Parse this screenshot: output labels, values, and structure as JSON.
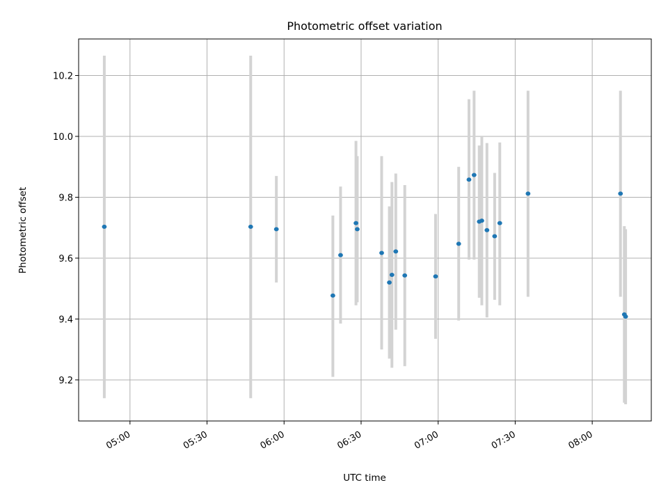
{
  "chart_data": {
    "type": "scatter",
    "title": "Photometric offset variation",
    "xlabel": "UTC time",
    "ylabel": "Photometric offset",
    "x_axis_kind": "time",
    "xlim": [
      "04:40",
      "08:23"
    ],
    "ylim": [
      9.065,
      10.32
    ],
    "grid": true,
    "marker_color": "#1f77b4",
    "errorbar_color": "#d3d3d3",
    "x_ticks": [
      "05:00",
      "05:30",
      "06:00",
      "06:30",
      "07:00",
      "07:30",
      "08:00"
    ],
    "y_ticks": [
      9.2,
      9.4,
      9.6,
      9.8,
      10.0,
      10.2
    ],
    "y_tick_labels": [
      "9.2",
      "9.4",
      "9.6",
      "9.8",
      "10.0",
      "10.2"
    ],
    "points": [
      {
        "t": "04:50",
        "y": 9.703,
        "lo": 9.14,
        "hi": 10.265
      },
      {
        "t": "05:47",
        "y": 9.703,
        "lo": 9.14,
        "hi": 10.265
      },
      {
        "t": "05:57",
        "y": 9.695,
        "lo": 9.52,
        "hi": 9.87
      },
      {
        "t": "06:19",
        "y": 9.477,
        "lo": 9.21,
        "hi": 9.74
      },
      {
        "t": "06:22",
        "y": 9.61,
        "lo": 9.385,
        "hi": 9.835
      },
      {
        "t": "06:28",
        "y": 9.715,
        "lo": 9.445,
        "hi": 9.985
      },
      {
        "t": "06:28.5",
        "y": 9.695,
        "lo": 9.455,
        "hi": 9.935
      },
      {
        "t": "06:38",
        "y": 9.617,
        "lo": 9.3,
        "hi": 9.935
      },
      {
        "t": "06:41",
        "y": 9.52,
        "lo": 9.27,
        "hi": 9.77
      },
      {
        "t": "06:42",
        "y": 9.545,
        "lo": 9.24,
        "hi": 9.85
      },
      {
        "t": "06:43.5",
        "y": 9.622,
        "lo": 9.365,
        "hi": 9.878
      },
      {
        "t": "06:47",
        "y": 9.543,
        "lo": 9.245,
        "hi": 9.84
      },
      {
        "t": "06:59",
        "y": 9.54,
        "lo": 9.335,
        "hi": 9.745
      },
      {
        "t": "07:08",
        "y": 9.647,
        "lo": 9.395,
        "hi": 9.9
      },
      {
        "t": "07:12",
        "y": 9.858,
        "lo": 9.595,
        "hi": 10.122
      },
      {
        "t": "07:14",
        "y": 9.873,
        "lo": 9.595,
        "hi": 10.15
      },
      {
        "t": "07:16",
        "y": 9.72,
        "lo": 9.47,
        "hi": 9.97
      },
      {
        "t": "07:17",
        "y": 9.723,
        "lo": 9.445,
        "hi": 10.0
      },
      {
        "t": "07:19",
        "y": 9.692,
        "lo": 9.405,
        "hi": 9.978
      },
      {
        "t": "07:22",
        "y": 9.672,
        "lo": 9.463,
        "hi": 9.88
      },
      {
        "t": "07:24",
        "y": 9.715,
        "lo": 9.445,
        "hi": 9.98
      },
      {
        "t": "07:35",
        "y": 9.812,
        "lo": 9.473,
        "hi": 10.15
      },
      {
        "t": "08:11",
        "y": 9.812,
        "lo": 9.473,
        "hi": 10.15
      },
      {
        "t": "08:12.5",
        "y": 9.415,
        "lo": 9.125,
        "hi": 9.705
      },
      {
        "t": "08:13",
        "y": 9.408,
        "lo": 9.12,
        "hi": 9.695
      }
    ]
  }
}
